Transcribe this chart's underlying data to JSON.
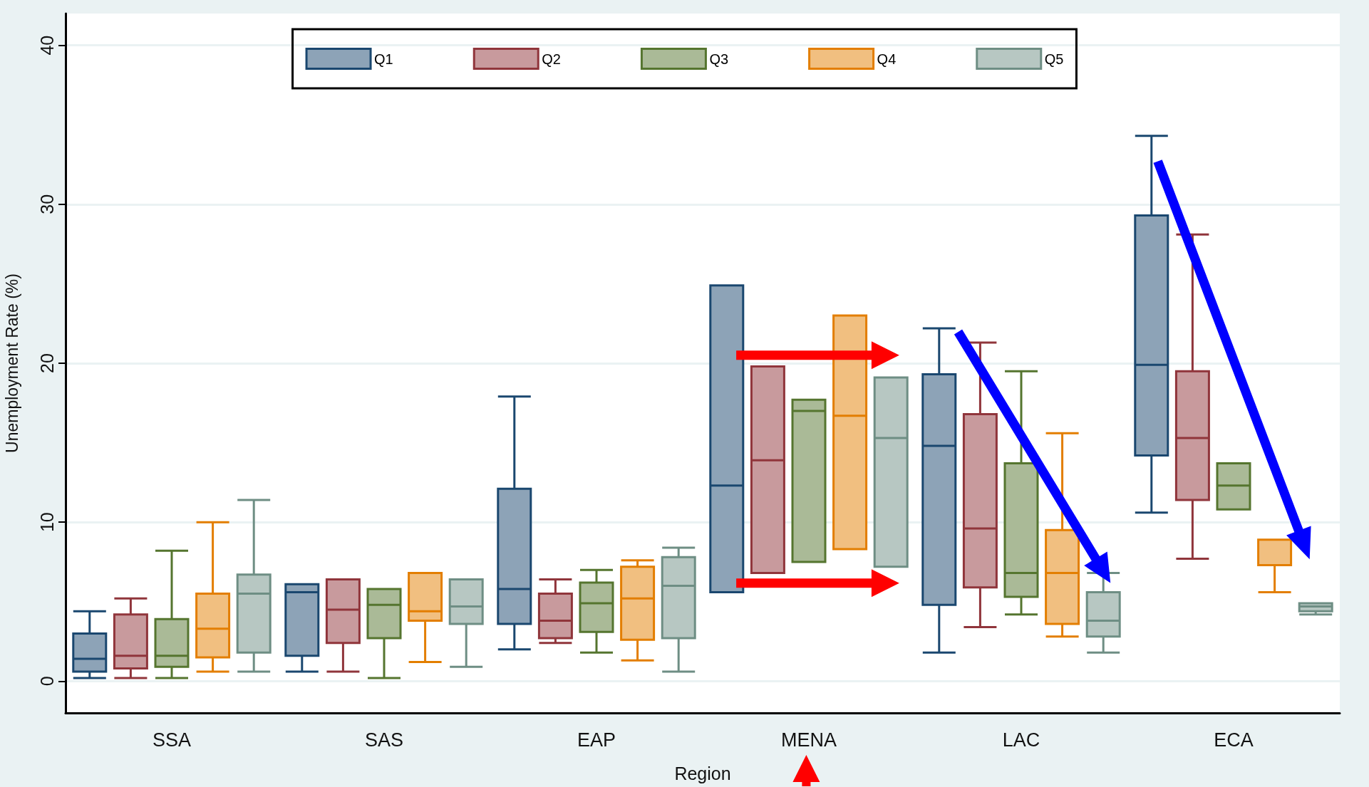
{
  "chart_data": {
    "type": "box",
    "xlabel": "Region",
    "ylabel": "Unemployment Rate (%)",
    "categories": [
      "SSA",
      "SAS",
      "EAP",
      "MENA",
      "LAC",
      "ECA"
    ],
    "series": [
      {
        "name": "Q1",
        "color": "#1a476f",
        "boxes": [
          {
            "low": 0.2,
            "q1": 0.6,
            "median": 1.4,
            "q3": 3.0,
            "high": 4.4
          },
          {
            "low": 0.6,
            "q1": 1.6,
            "median": 5.6,
            "q3": 6.1,
            "high": 6.1
          },
          {
            "low": 2.0,
            "q1": 3.6,
            "median": 5.8,
            "q3": 12.1,
            "high": 17.9
          },
          {
            "low": 5.6,
            "q1": 5.6,
            "median": 12.3,
            "q3": 24.9,
            "high": 24.9
          },
          {
            "low": 1.8,
            "q1": 4.8,
            "median": 14.8,
            "q3": 19.3,
            "high": 22.2
          },
          {
            "low": 10.6,
            "q1": 14.2,
            "median": 19.9,
            "q3": 29.3,
            "high": 34.3
          }
        ]
      },
      {
        "name": "Q2",
        "color": "#90353b",
        "boxes": [
          {
            "low": 0.2,
            "q1": 0.8,
            "median": 1.6,
            "q3": 4.2,
            "high": 5.2
          },
          {
            "low": 0.6,
            "q1": 2.4,
            "median": 4.5,
            "q3": 6.4,
            "high": 6.4
          },
          {
            "low": 2.4,
            "q1": 2.7,
            "median": 3.8,
            "q3": 5.5,
            "high": 6.4
          },
          {
            "low": 6.8,
            "q1": 6.8,
            "median": 13.9,
            "q3": 19.8,
            "high": 19.8
          },
          {
            "low": 3.4,
            "q1": 5.9,
            "median": 9.6,
            "q3": 16.8,
            "high": 21.3
          },
          {
            "low": 7.7,
            "q1": 11.4,
            "median": 15.3,
            "q3": 19.5,
            "high": 28.1
          }
        ]
      },
      {
        "name": "Q3",
        "color": "#55752f",
        "boxes": [
          {
            "low": 0.2,
            "q1": 0.9,
            "median": 1.6,
            "q3": 3.9,
            "high": 8.2
          },
          {
            "low": 0.2,
            "q1": 2.7,
            "median": 4.8,
            "q3": 5.8,
            "high": 5.8
          },
          {
            "low": 1.8,
            "q1": 3.1,
            "median": 4.9,
            "q3": 6.2,
            "high": 7.0
          },
          {
            "low": 7.5,
            "q1": 7.5,
            "median": 17.0,
            "q3": 17.7,
            "high": 17.7
          },
          {
            "low": 4.2,
            "q1": 5.3,
            "median": 6.8,
            "q3": 13.7,
            "high": 19.5
          },
          {
            "low": 10.8,
            "q1": 10.8,
            "median": 12.3,
            "q3": 13.7,
            "high": 13.7
          }
        ]
      },
      {
        "name": "Q4",
        "color": "#e37e00",
        "boxes": [
          {
            "low": 0.6,
            "q1": 1.5,
            "median": 3.3,
            "q3": 5.5,
            "high": 10.0
          },
          {
            "low": 1.2,
            "q1": 3.8,
            "median": 4.4,
            "q3": 6.8,
            "high": 6.8
          },
          {
            "low": 1.3,
            "q1": 2.6,
            "median": 5.2,
            "q3": 7.2,
            "high": 7.6
          },
          {
            "low": 8.3,
            "q1": 8.3,
            "median": 16.7,
            "q3": 23.0,
            "high": 23.0
          },
          {
            "low": 2.8,
            "q1": 3.6,
            "median": 6.8,
            "q3": 9.5,
            "high": 15.6
          },
          {
            "low": 5.6,
            "q1": 7.3,
            "median": 8.9,
            "q3": 8.9,
            "high": 8.9
          }
        ]
      },
      {
        "name": "Q5",
        "color": "#6e8e84",
        "boxes": [
          {
            "low": 0.6,
            "q1": 1.8,
            "median": 5.5,
            "q3": 6.7,
            "high": 11.4
          },
          {
            "low": 0.9,
            "q1": 3.6,
            "median": 4.7,
            "q3": 6.4,
            "high": 6.4
          },
          {
            "low": 0.6,
            "q1": 2.7,
            "median": 6.0,
            "q3": 7.8,
            "high": 8.4
          },
          {
            "low": 7.2,
            "q1": 7.2,
            "median": 15.3,
            "q3": 19.1,
            "high": 19.1
          },
          {
            "low": 1.8,
            "q1": 2.8,
            "median": 3.8,
            "q3": 5.6,
            "high": 6.8
          },
          {
            "low": 4.2,
            "q1": 4.4,
            "median": 4.7,
            "q3": 4.9,
            "high": 4.9
          }
        ]
      }
    ],
    "ylim": [
      -2,
      42
    ],
    "yticks": [
      0,
      10,
      20,
      30,
      40
    ],
    "grid": "y",
    "legend": "top"
  }
}
